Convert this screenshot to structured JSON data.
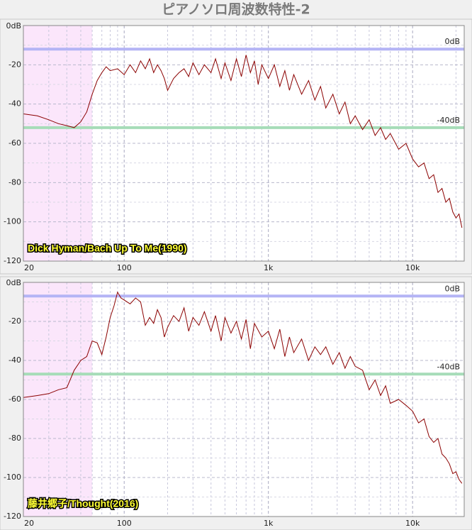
{
  "title": "ピアノソロ周波数特性-2",
  "chart_data": [
    {
      "type": "line",
      "log_x": true,
      "grid": true,
      "color": "#8b0000",
      "annotation": "Dick Hyman/Bach Up To Me(1990)",
      "shaded_band": {
        "xlim": [
          20,
          60
        ],
        "color": "#fbe6fb"
      },
      "reference_lines": [
        {
          "value": -12,
          "label": "0dB",
          "color": "#b4b4f5"
        },
        {
          "value": -52,
          "label": "-40dB",
          "color": "#a6dcb8"
        }
      ],
      "xlim": [
        20,
        22800
      ],
      "xticks": [
        20,
        100,
        {
          "value": 1000,
          "label": "1k"
        },
        {
          "value": 10000,
          "label": "10k"
        }
      ],
      "minor_xticks": [
        30,
        40,
        50,
        60,
        70,
        80,
        90,
        200,
        300,
        400,
        500,
        600,
        700,
        800,
        900,
        2000,
        3000,
        4000,
        5000,
        6000,
        7000,
        8000,
        9000,
        20000
      ],
      "ylim": [
        -120,
        0
      ],
      "yticks": [
        {
          "value": 0,
          "label": "0dB"
        },
        -20,
        -40,
        -60,
        -80,
        -100,
        -120
      ],
      "minor_yticks": [
        -10,
        -30,
        -50,
        -70,
        -90,
        -110
      ],
      "x": [
        20,
        25,
        30,
        35,
        40,
        45,
        50,
        55,
        60,
        65,
        70,
        75,
        80,
        90,
        100,
        110,
        120,
        130,
        140,
        150,
        160,
        170,
        180,
        190,
        200,
        220,
        240,
        260,
        280,
        300,
        330,
        360,
        400,
        430,
        470,
        500,
        550,
        600,
        650,
        700,
        750,
        800,
        850,
        900,
        1000,
        1100,
        1200,
        1300,
        1400,
        1500,
        1700,
        1900,
        2100,
        2300,
        2500,
        2800,
        3100,
        3400,
        3700,
        4000,
        4500,
        5000,
        5500,
        6000,
        6500,
        7000,
        8000,
        9000,
        10000,
        11000,
        12000,
        13000,
        14000,
        15000,
        16000,
        17000,
        18000,
        19000,
        20000,
        21000,
        22000
      ],
      "values": [
        -45,
        -46,
        -48,
        -50,
        -51,
        -52,
        -49,
        -44,
        -35,
        -28,
        -24,
        -21,
        -23,
        -22,
        -25,
        -20,
        -24,
        -18,
        -22,
        -17,
        -24,
        -20,
        -23,
        -27,
        -33,
        -27,
        -24,
        -22,
        -26,
        -19,
        -25,
        -20,
        -24,
        -17,
        -27,
        -19,
        -28,
        -17,
        -26,
        -15,
        -24,
        -18,
        -30,
        -20,
        -27,
        -20,
        -31,
        -23,
        -33,
        -25,
        -35,
        -28,
        -38,
        -31,
        -42,
        -35,
        -45,
        -39,
        -50,
        -46,
        -53,
        -48,
        -56,
        -52,
        -58,
        -55,
        -63,
        -60,
        -68,
        -72,
        -70,
        -78,
        -76,
        -85,
        -83,
        -90,
        -88,
        -95,
        -98,
        -96,
        -103
      ]
    },
    {
      "type": "line",
      "log_x": true,
      "grid": true,
      "color": "#8b0000",
      "annotation": "藤井郷子/Thought(2016)",
      "shaded_band": {
        "xlim": [
          20,
          60
        ],
        "color": "#fbe6fb"
      },
      "reference_lines": [
        {
          "value": -7,
          "label": "0dB",
          "color": "#b4b4f5"
        },
        {
          "value": -47,
          "label": "-40dB",
          "color": "#a6dcb8"
        }
      ],
      "xlim": [
        20,
        22800
      ],
      "xticks": [
        20,
        100,
        {
          "value": 1000,
          "label": "1k"
        },
        {
          "value": 10000,
          "label": "10k"
        }
      ],
      "minor_xticks": [
        30,
        40,
        50,
        60,
        70,
        80,
        90,
        200,
        300,
        400,
        500,
        600,
        700,
        800,
        900,
        2000,
        3000,
        4000,
        5000,
        6000,
        7000,
        8000,
        9000,
        20000
      ],
      "ylim": [
        -120,
        0
      ],
      "yticks": [
        {
          "value": 0,
          "label": "0dB"
        },
        -20,
        -40,
        -60,
        -80,
        -100,
        -120
      ],
      "minor_yticks": [
        -10,
        -30,
        -50,
        -70,
        -90,
        -110
      ],
      "x": [
        20,
        25,
        30,
        35,
        40,
        45,
        50,
        55,
        60,
        65,
        70,
        75,
        80,
        85,
        90,
        95,
        100,
        110,
        120,
        130,
        140,
        150,
        160,
        170,
        180,
        190,
        200,
        220,
        240,
        260,
        280,
        300,
        330,
        360,
        400,
        430,
        470,
        500,
        550,
        600,
        650,
        700,
        750,
        800,
        900,
        1000,
        1100,
        1200,
        1300,
        1400,
        1500,
        1700,
        1900,
        2100,
        2300,
        2500,
        2800,
        3100,
        3400,
        3700,
        4000,
        4500,
        5000,
        5500,
        6000,
        6500,
        7000,
        8000,
        9000,
        10000,
        11000,
        12000,
        13000,
        14000,
        15000,
        16000,
        17000,
        18000,
        19000,
        20000,
        21000,
        22000
      ],
      "values": [
        -59,
        -58,
        -57,
        -55,
        -54,
        -45,
        -40,
        -38,
        -30,
        -31,
        -37,
        -28,
        -18,
        -12,
        -5,
        -8,
        -9,
        -11,
        -8,
        -10,
        -22,
        -18,
        -21,
        -14,
        -18,
        -28,
        -23,
        -17,
        -20,
        -13,
        -25,
        -18,
        -22,
        -15,
        -25,
        -17,
        -30,
        -18,
        -26,
        -20,
        -29,
        -19,
        -34,
        -21,
        -28,
        -25,
        -34,
        -24,
        -38,
        -28,
        -36,
        -29,
        -40,
        -33,
        -37,
        -33,
        -42,
        -36,
        -44,
        -38,
        -43,
        -45,
        -55,
        -50,
        -58,
        -53,
        -62,
        -60,
        -63,
        -66,
        -72,
        -70,
        -79,
        -82,
        -80,
        -88,
        -90,
        -93,
        -98,
        -97,
        -101,
        -103
      ]
    }
  ]
}
